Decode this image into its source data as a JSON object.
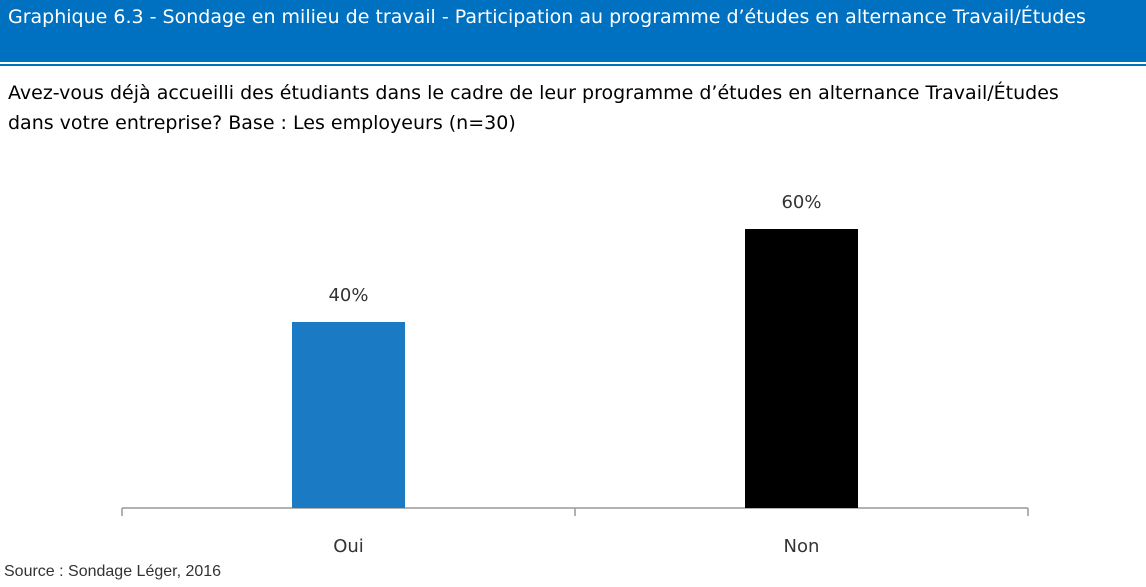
{
  "chart_data": {
    "type": "bar",
    "title": "Graphique 6.3 - Sondage en milieu de travail - Participation au programme d’études en alternance Travail/Études",
    "subtitle": "Avez-vous déjà accueilli des étudiants dans le cadre de leur programme d’études en alternance Travail/Études dans votre entreprise? Base : Les employeurs (n=30)",
    "categories": [
      "Oui",
      "Non"
    ],
    "values": [
      40,
      60
    ],
    "value_labels": [
      "40%",
      "60%"
    ],
    "colors": [
      "#1a7ac4",
      "#000000"
    ],
    "source": "Source : Sondage Léger, 2016"
  }
}
